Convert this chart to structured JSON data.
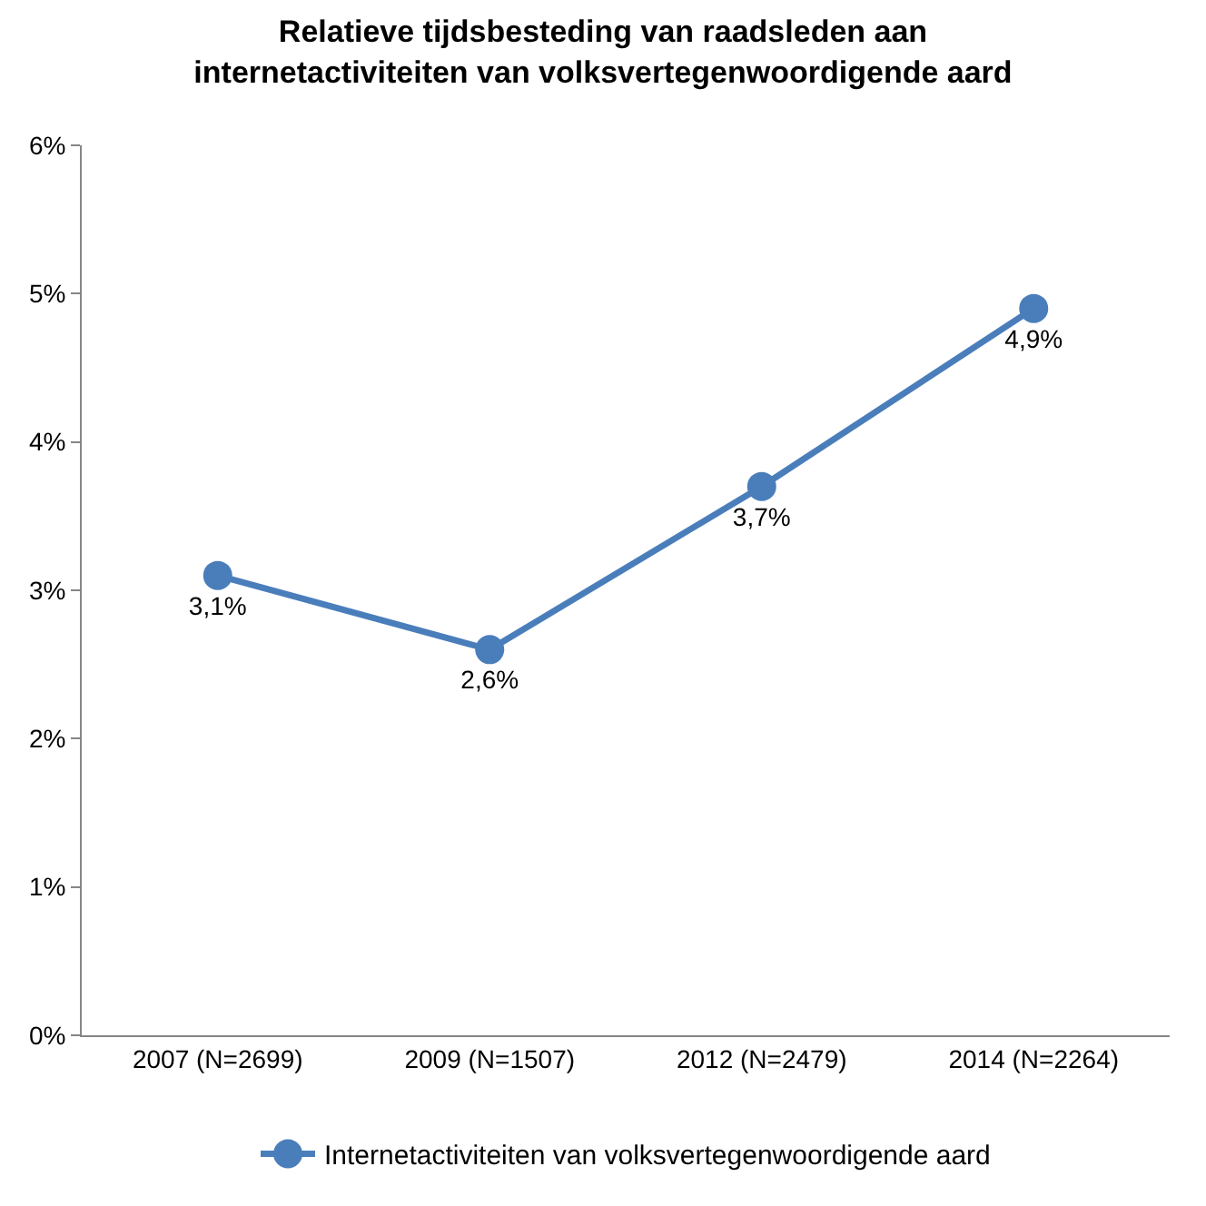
{
  "chart_data": {
    "type": "line",
    "title": "Relatieve tijdsbesteding van raadsleden aan internetactiviteiten van volksvertegenwoordigende aard",
    "categories": [
      "2007 (N=2699)",
      "2009 (N=1507)",
      "2012 (N=2479)",
      "2014 (N=2264)"
    ],
    "series": [
      {
        "name": "Internetactiviteiten van volksvertegenwoordigende aard",
        "color": "#4a7ebb",
        "values": [
          3.1,
          2.6,
          3.7,
          4.9
        ],
        "value_labels": [
          "3,1%",
          "2,6%",
          "3,7%",
          "4,9%"
        ]
      }
    ],
    "ylim": [
      0,
      6
    ],
    "yticks": [
      {
        "value": 0,
        "label": "0%"
      },
      {
        "value": 1,
        "label": "1%"
      },
      {
        "value": 2,
        "label": "2%"
      },
      {
        "value": 3,
        "label": "3%"
      },
      {
        "value": 4,
        "label": "4%"
      },
      {
        "value": 5,
        "label": "5%"
      },
      {
        "value": 6,
        "label": "6%"
      }
    ],
    "grid": false,
    "legend": "bottom",
    "marker": "circle",
    "line_style": "solid"
  }
}
